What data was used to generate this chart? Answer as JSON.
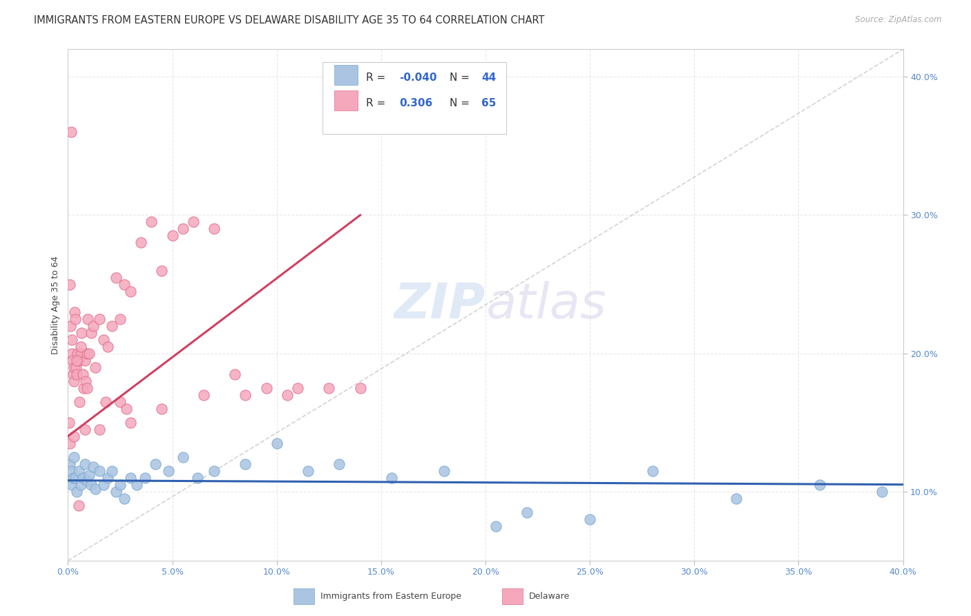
{
  "title": "IMMIGRANTS FROM EASTERN EUROPE VS DELAWARE DISABILITY AGE 35 TO 64 CORRELATION CHART",
  "source": "Source: ZipAtlas.com",
  "ylabel": "Disability Age 35 to 64",
  "xmin": 0.0,
  "xmax": 40.0,
  "ymin": 5.0,
  "ymax": 42.0,
  "watermark_zip": "ZIP",
  "watermark_atlas": "atlas",
  "legend_blue_r": "-0.040",
  "legend_blue_n": "44",
  "legend_pink_r": "0.306",
  "legend_pink_n": "65",
  "blue_color": "#aac4e2",
  "pink_color": "#f5a8bc",
  "blue_edge_color": "#7aaad0",
  "pink_edge_color": "#e07090",
  "blue_line_color": "#3060b0",
  "pink_line_color": "#d04060",
  "ref_line_color": "#c8c8c8",
  "grid_color": "#e8e8e8",
  "title_color": "#333333",
  "tick_color": "#5588cc",
  "ylabel_color": "#444444",
  "source_color": "#aaaaaa",
  "blue_points_x": [
    0.1,
    0.15,
    0.2,
    0.25,
    0.3,
    0.35,
    0.4,
    0.5,
    0.6,
    0.7,
    0.8,
    0.9,
    1.0,
    1.1,
    1.2,
    1.3,
    1.5,
    1.7,
    1.9,
    2.1,
    2.3,
    2.5,
    2.7,
    3.0,
    3.3,
    3.7,
    4.2,
    4.8,
    5.5,
    6.2,
    7.0,
    8.5,
    10.0,
    11.5,
    13.0,
    15.5,
    18.0,
    20.5,
    22.0,
    25.0,
    28.0,
    32.0,
    36.0,
    39.0
  ],
  "blue_points_y": [
    12.0,
    11.5,
    10.5,
    11.0,
    12.5,
    11.0,
    10.0,
    11.5,
    10.5,
    11.0,
    12.0,
    10.8,
    11.2,
    10.5,
    11.8,
    10.2,
    11.5,
    10.5,
    11.0,
    11.5,
    10.0,
    10.5,
    9.5,
    11.0,
    10.5,
    11.0,
    12.0,
    11.5,
    12.5,
    11.0,
    11.5,
    12.0,
    13.5,
    11.5,
    12.0,
    11.0,
    11.5,
    7.5,
    8.5,
    8.0,
    11.5,
    9.5,
    10.5,
    10.0
  ],
  "pink_points_x": [
    0.05,
    0.08,
    0.1,
    0.12,
    0.15,
    0.18,
    0.2,
    0.22,
    0.25,
    0.28,
    0.3,
    0.32,
    0.35,
    0.38,
    0.4,
    0.45,
    0.5,
    0.55,
    0.6,
    0.65,
    0.7,
    0.75,
    0.8,
    0.85,
    0.9,
    0.95,
    1.0,
    1.1,
    1.2,
    1.3,
    1.5,
    1.7,
    1.9,
    2.1,
    2.3,
    2.5,
    2.7,
    3.0,
    3.5,
    4.0,
    4.5,
    5.0,
    5.5,
    6.0,
    7.0,
    8.0,
    9.5,
    11.0,
    12.5,
    14.0,
    3.0,
    2.5,
    4.5,
    6.5,
    8.5,
    10.5,
    1.5,
    0.5,
    0.3,
    0.8,
    1.8,
    2.8,
    0.4,
    0.6,
    0.9
  ],
  "pink_points_y": [
    15.0,
    13.5,
    25.0,
    22.0,
    36.0,
    20.0,
    21.0,
    19.5,
    18.5,
    19.0,
    18.0,
    23.0,
    22.5,
    19.0,
    18.5,
    20.0,
    19.5,
    16.5,
    20.0,
    21.5,
    18.5,
    17.5,
    19.5,
    18.0,
    20.0,
    22.5,
    20.0,
    21.5,
    22.0,
    19.0,
    22.5,
    21.0,
    20.5,
    22.0,
    25.5,
    22.5,
    25.0,
    24.5,
    28.0,
    29.5,
    26.0,
    28.5,
    29.0,
    29.5,
    29.0,
    18.5,
    17.5,
    17.5,
    17.5,
    17.5,
    15.0,
    16.5,
    16.0,
    17.0,
    17.0,
    17.0,
    14.5,
    9.0,
    14.0,
    14.5,
    16.5,
    16.0,
    19.5,
    20.5,
    17.5
  ]
}
